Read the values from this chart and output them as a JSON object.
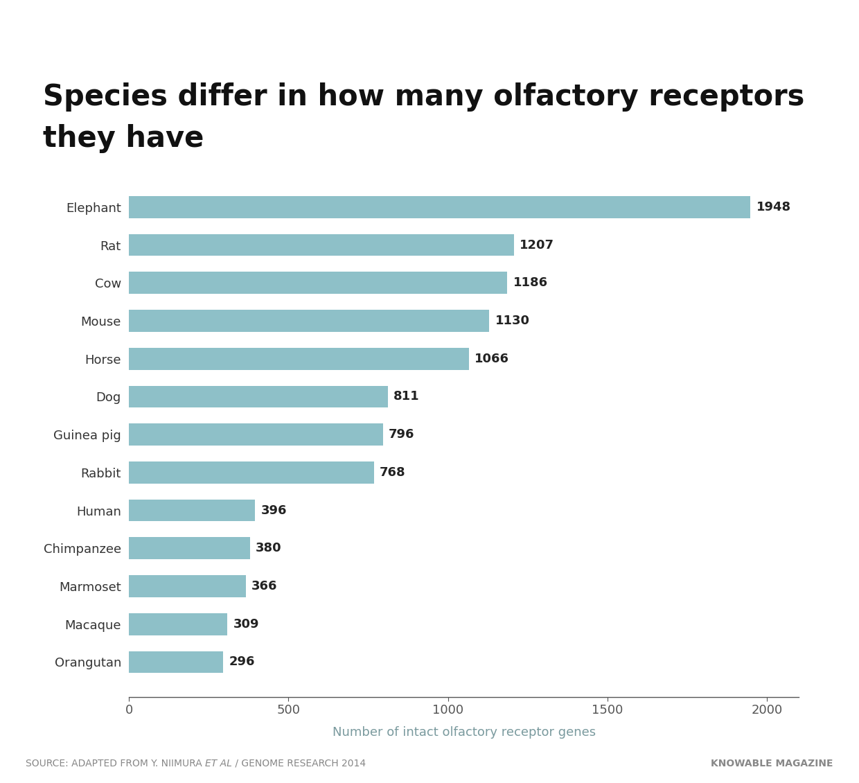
{
  "title_line1": "Species differ in how many olfactory receptors",
  "title_line2": "they have",
  "species": [
    "Elephant",
    "Rat",
    "Cow",
    "Mouse",
    "Horse",
    "Dog",
    "Guinea pig",
    "Rabbit",
    "Human",
    "Chimpanzee",
    "Marmoset",
    "Macaque",
    "Orangutan"
  ],
  "values": [
    1948,
    1207,
    1186,
    1130,
    1066,
    811,
    796,
    768,
    396,
    380,
    366,
    309,
    296
  ],
  "bar_color": "#8ec0c8",
  "xlabel": "Number of intact olfactory receptor genes",
  "xlabel_color": "#7a9a9e",
  "xlim": [
    0,
    2100
  ],
  "xticks": [
    0,
    500,
    1000,
    1500,
    2000
  ],
  "value_label_color": "#222222",
  "value_label_fontsize": 13,
  "title_fontsize": 30,
  "xlabel_fontsize": 13,
  "ytick_fontsize": 13,
  "xtick_fontsize": 13,
  "background_color": "#ffffff",
  "top_line_color": "#a8d8dc",
  "footer_color": "#888888",
  "footer_fontsize": 10,
  "bar_height": 0.58
}
